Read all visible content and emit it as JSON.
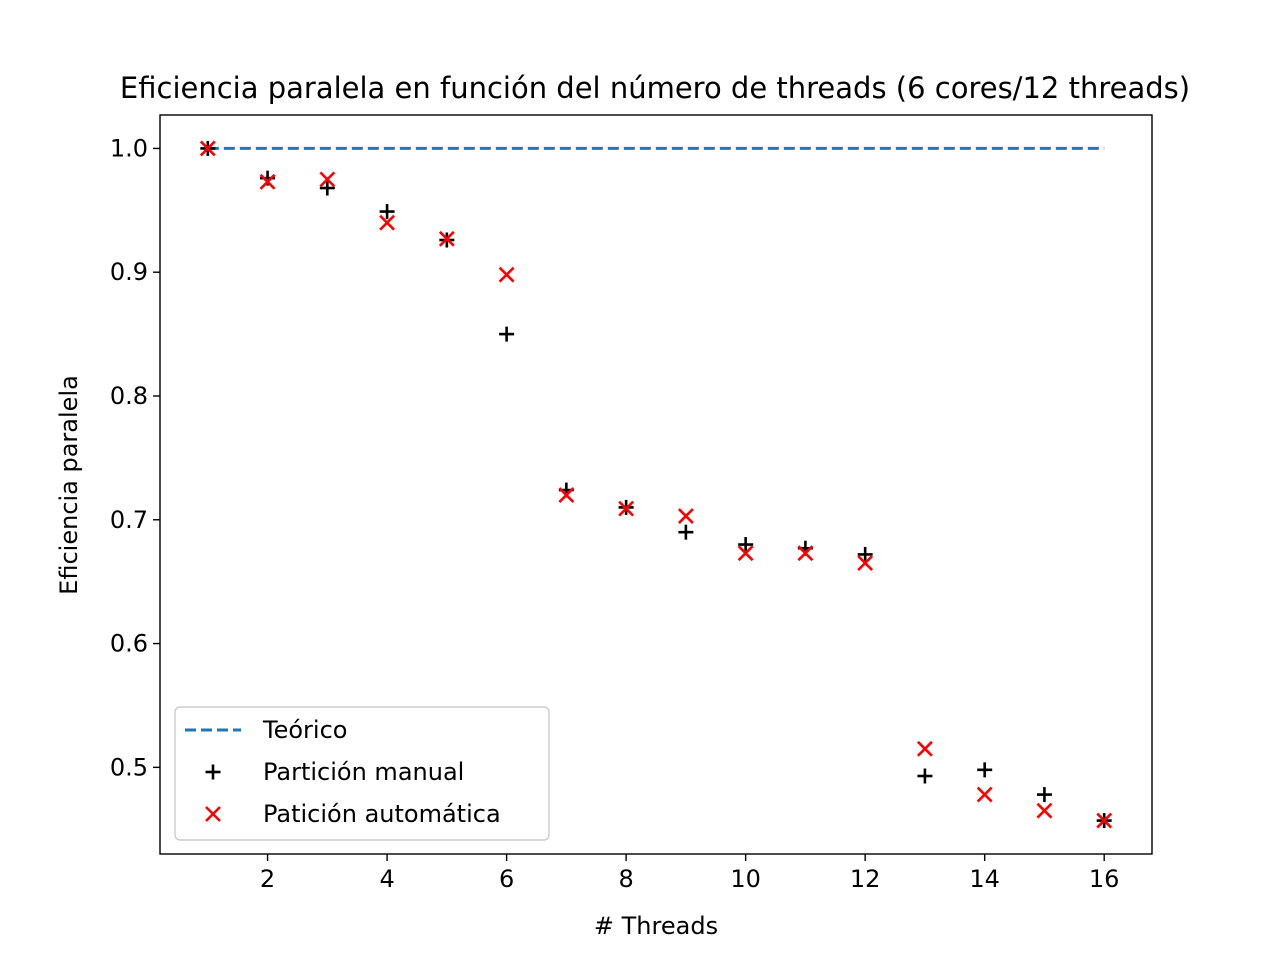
{
  "chart_data": {
    "type": "scatter",
    "title": "Eficiencia paralela en función del número de threads (6 cores/12 threads)",
    "xlabel": "# Threads",
    "ylabel": "Eficiencia paralela",
    "xlim": [
      0.2,
      16.8
    ],
    "ylim": [
      0.43,
      1.027
    ],
    "xticks": [
      2,
      4,
      6,
      8,
      10,
      12,
      14,
      16
    ],
    "yticks": [
      0.5,
      0.6,
      0.7,
      0.8,
      0.9,
      1.0
    ],
    "grid": false,
    "legend_position": "lower-left",
    "series": [
      {
        "name": "Teórico",
        "kind": "line",
        "style": "dashed",
        "color": "#1f77b4",
        "x": [
          1,
          16
        ],
        "y": [
          1.0,
          1.0
        ]
      },
      {
        "name": "Partición manual",
        "kind": "scatter",
        "marker": "plus",
        "color": "#000000",
        "x": [
          1,
          2,
          3,
          4,
          5,
          6,
          7,
          8,
          9,
          10,
          11,
          12,
          13,
          14,
          15,
          16
        ],
        "y": [
          1.0,
          0.976,
          0.968,
          0.949,
          0.926,
          0.85,
          0.724,
          0.71,
          0.69,
          0.68,
          0.677,
          0.672,
          0.493,
          0.498,
          0.478,
          0.457
        ]
      },
      {
        "name": "Patición automática",
        "kind": "scatter",
        "marker": "x",
        "color": "#ff0000",
        "x": [
          1,
          2,
          3,
          4,
          5,
          6,
          7,
          8,
          9,
          10,
          11,
          12,
          13,
          14,
          15,
          16
        ],
        "y": [
          1.0,
          0.973,
          0.975,
          0.94,
          0.927,
          0.898,
          0.72,
          0.709,
          0.703,
          0.673,
          0.673,
          0.665,
          0.515,
          0.478,
          0.465,
          0.457
        ]
      }
    ]
  }
}
